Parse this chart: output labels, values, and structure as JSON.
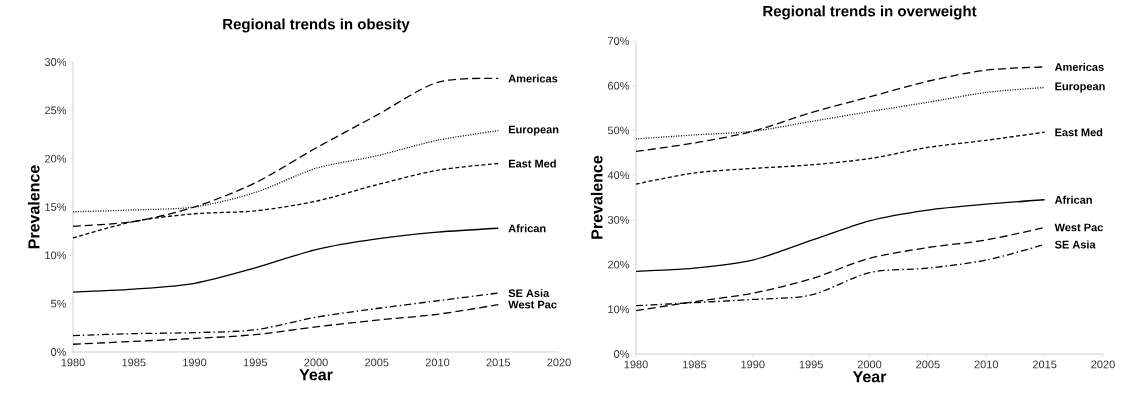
{
  "chart_data": [
    {
      "type": "line",
      "title": "Regional trends in obesity",
      "xlabel": "Year",
      "ylabel": "Prevalence",
      "x": [
        1980,
        1985,
        1990,
        1995,
        2000,
        2005,
        2010,
        2015
      ],
      "xlim": [
        1980,
        2020
      ],
      "xticks": [
        1980,
        1985,
        1990,
        1995,
        2000,
        2005,
        2010,
        2015,
        2020
      ],
      "ylim": [
        0,
        30
      ],
      "yticks": [
        {
          "value": 0,
          "label": "0%"
        },
        {
          "value": 5,
          "label": "5%"
        },
        {
          "value": 10,
          "label": "10%"
        },
        {
          "value": 15,
          "label": "15%"
        },
        {
          "value": 20,
          "label": "20%"
        },
        {
          "value": 25,
          "label": "25%"
        },
        {
          "value": 30,
          "label": "30%"
        }
      ],
      "grid": false,
      "series": [
        {
          "name": "Americas",
          "color": "#000000",
          "line_style": "longdash",
          "values": [
            13.0,
            13.5,
            15.0,
            17.5,
            21.1,
            24.5,
            27.9,
            28.3
          ]
        },
        {
          "name": "European",
          "color": "#000000",
          "line_style": "dotted",
          "values": [
            14.5,
            14.7,
            15.0,
            16.5,
            19.0,
            20.3,
            21.9,
            22.9
          ]
        },
        {
          "name": "East Med",
          "color": "#000000",
          "line_style": "dashed",
          "values": [
            11.8,
            13.5,
            14.3,
            14.6,
            15.6,
            17.3,
            18.8,
            19.5
          ]
        },
        {
          "name": "African",
          "color": "#000000",
          "line_style": "solid",
          "values": [
            6.2,
            6.5,
            7.1,
            8.7,
            10.6,
            11.7,
            12.4,
            12.8
          ]
        },
        {
          "name": "SE Asia",
          "color": "#000000",
          "line_style": "dashdot",
          "values": [
            1.7,
            1.9,
            2.0,
            2.3,
            3.6,
            4.5,
            5.3,
            6.1
          ]
        },
        {
          "name": "West Pac",
          "color": "#000000",
          "line_style": "longdash",
          "values": [
            0.8,
            1.1,
            1.4,
            1.8,
            2.6,
            3.3,
            3.9,
            4.9
          ]
        }
      ]
    },
    {
      "type": "line",
      "title": "Regional trends in overweight",
      "xlabel": "Year",
      "ylabel": "Prevalence",
      "x": [
        1980,
        1985,
        1990,
        1995,
        2000,
        2005,
        2010,
        2015
      ],
      "xlim": [
        1980,
        2020
      ],
      "xticks": [
        1980,
        1985,
        1990,
        1995,
        2000,
        2005,
        2010,
        2015,
        2020
      ],
      "ylim": [
        0,
        70
      ],
      "yticks": [
        {
          "value": 0,
          "label": "0%"
        },
        {
          "value": 10,
          "label": "10%"
        },
        {
          "value": 20,
          "label": "20%"
        },
        {
          "value": 30,
          "label": "30%"
        },
        {
          "value": 40,
          "label": "40%"
        },
        {
          "value": 50,
          "label": "50%"
        },
        {
          "value": 60,
          "label": "60%"
        },
        {
          "value": 70,
          "label": "70%"
        }
      ],
      "grid": false,
      "series": [
        {
          "name": "Americas",
          "color": "#000000",
          "line_style": "longdash",
          "values": [
            45.3,
            47.2,
            49.8,
            54.0,
            57.5,
            61.0,
            63.5,
            64.2
          ]
        },
        {
          "name": "European",
          "color": "#000000",
          "line_style": "dotted",
          "values": [
            48.1,
            49.0,
            49.8,
            52.0,
            54.2,
            56.3,
            58.5,
            59.6
          ]
        },
        {
          "name": "East Med",
          "color": "#000000",
          "line_style": "dashed",
          "values": [
            38.0,
            40.5,
            41.5,
            42.3,
            43.7,
            46.2,
            47.8,
            49.6
          ]
        },
        {
          "name": "African",
          "color": "#000000",
          "line_style": "solid",
          "values": [
            18.5,
            19.2,
            21.0,
            25.4,
            29.8,
            32.2,
            33.5,
            34.5
          ]
        },
        {
          "name": "West Pac",
          "color": "#000000",
          "line_style": "longdash",
          "values": [
            9.7,
            11.7,
            13.6,
            16.8,
            21.4,
            23.8,
            25.5,
            28.3
          ]
        },
        {
          "name": "SE Asia",
          "color": "#000000",
          "line_style": "dashdot",
          "values": [
            10.8,
            11.5,
            12.2,
            13.2,
            18.2,
            19.2,
            21.0,
            24.5
          ]
        }
      ]
    }
  ]
}
